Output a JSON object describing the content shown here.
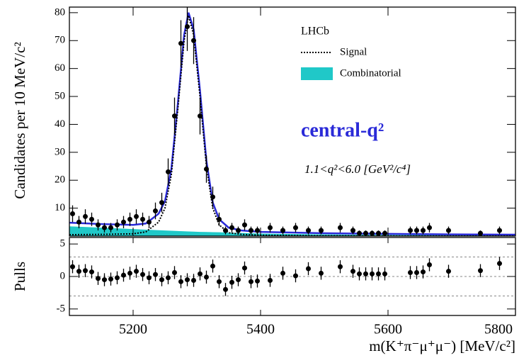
{
  "chart_data": [
    {
      "type": "scatter",
      "ylabel": "Candidates per 10 MeV/c²",
      "experiment": "LHCb",
      "annotations": [
        "central-q²",
        "1.1<q²<6.0 [GeV²/c⁴]"
      ],
      "xlim": [
        5100,
        5800
      ],
      "xticks": [
        5200,
        5400,
        5600,
        5800
      ],
      "ylim": [
        0,
        82
      ],
      "yticks": [
        10,
        20,
        30,
        40,
        50,
        60,
        70,
        80
      ],
      "color": "#000000",
      "x": [
        5105,
        5115,
        5125,
        5135,
        5145,
        5155,
        5165,
        5175,
        5185,
        5195,
        5205,
        5215,
        5225,
        5235,
        5245,
        5255,
        5265,
        5275,
        5285,
        5295,
        5305,
        5315,
        5325,
        5335,
        5345,
        5355,
        5365,
        5375,
        5385,
        5395,
        5415,
        5435,
        5455,
        5475,
        5495,
        5525,
        5545,
        5555,
        5565,
        5575,
        5585,
        5595,
        5635,
        5645,
        5655,
        5665,
        5695,
        5745,
        5775
      ],
      "values": [
        8,
        5,
        7,
        6,
        4,
        3,
        3,
        4,
        5,
        6,
        7,
        6,
        5,
        9,
        12,
        23,
        43,
        69,
        75,
        70,
        43,
        24,
        14,
        6,
        2,
        3,
        2,
        4,
        2,
        2,
        3,
        2,
        3,
        2,
        2,
        3,
        2,
        1,
        1,
        1,
        1,
        1,
        2,
        2,
        2,
        3,
        2,
        1,
        2
      ],
      "errors": [
        3,
        2.2,
        2.6,
        2.4,
        2,
        1.7,
        1.7,
        2,
        2.2,
        2.4,
        2.6,
        2.4,
        2.2,
        3,
        3.5,
        4.8,
        6.6,
        8.3,
        8.7,
        8.4,
        6.6,
        4.9,
        3.7,
        2.4,
        1.4,
        1.7,
        1.4,
        2,
        1.4,
        1.4,
        1.7,
        1.4,
        1.7,
        1.4,
        1.4,
        1.7,
        1.4,
        1,
        1,
        1,
        1,
        1,
        1.4,
        1.4,
        1.4,
        1.7,
        1.4,
        1,
        1.4
      ],
      "curves": [
        {
          "name": "Combinatorial",
          "color": "#20c8c8",
          "style": "fill",
          "x": [
            5100,
            5150,
            5200,
            5220,
            5240,
            5250,
            5260,
            5270,
            5280,
            5287,
            5295,
            5305,
            5315,
            5325,
            5335,
            5350,
            5370,
            5400,
            5500,
            5600,
            5700,
            5800
          ],
          "values": [
            3.5,
            3.0,
            2.5,
            2.3,
            2.1,
            2.0,
            1.9,
            1.8,
            1.7,
            1.65,
            1.6,
            1.5,
            1.45,
            1.4,
            1.35,
            1.2,
            1.1,
            0.9,
            0.6,
            0.4,
            0.3,
            0.2
          ]
        },
        {
          "color": "#2a2ad8",
          "style": "solid",
          "x": [
            5100,
            5150,
            5200,
            5220,
            5240,
            5250,
            5260,
            5270,
            5280,
            5287,
            5295,
            5305,
            5315,
            5325,
            5335,
            5350,
            5370,
            5400,
            5500,
            5600,
            5700,
            5800
          ],
          "values": [
            4.8,
            4.3,
            4.0,
            4.5,
            8,
            12.5,
            24,
            47,
            72,
            80,
            74,
            52,
            27,
            12,
            6,
            3,
            2,
            1.5,
            1,
            0.8,
            0.6,
            0.5
          ]
        },
        {
          "name": "Signal",
          "color": "#000000",
          "style": "dotted",
          "x": [
            5100,
            5150,
            5200,
            5220,
            5240,
            5250,
            5260,
            5270,
            5280,
            5287,
            5295,
            5305,
            5315,
            5325,
            5335,
            5350,
            5370,
            5400,
            5500,
            5600,
            5700,
            5800
          ],
          "values": [
            0.5,
            0.6,
            0.8,
            1.5,
            5,
            10,
            22,
            45,
            70,
            79,
            72,
            50,
            25,
            10,
            4,
            1.2,
            0.6,
            0.3,
            0.1,
            0.05,
            0.03,
            0.02
          ]
        }
      ]
    },
    {
      "type": "scatter",
      "ylabel": "Pulls",
      "xlabel": "m(K⁺π⁻μ⁺μ⁻) [MeV/c²]",
      "xlim": [
        5100,
        5800
      ],
      "xticks": [
        5200,
        5400,
        5600,
        5800
      ],
      "ylim": [
        -6,
        6
      ],
      "yticks": [
        -5,
        0,
        5
      ],
      "reference_lines": [
        -3,
        0,
        3
      ],
      "color": "#000000",
      "x": [
        5105,
        5115,
        5125,
        5135,
        5145,
        5155,
        5165,
        5175,
        5185,
        5195,
        5205,
        5215,
        5225,
        5235,
        5245,
        5255,
        5265,
        5275,
        5285,
        5295,
        5305,
        5315,
        5325,
        5335,
        5345,
        5355,
        5365,
        5375,
        5385,
        5395,
        5415,
        5435,
        5455,
        5475,
        5495,
        5525,
        5545,
        5555,
        5565,
        5575,
        5585,
        5595,
        5635,
        5645,
        5655,
        5665,
        5695,
        5745,
        5775
      ],
      "values": [
        1.5,
        0.8,
        0.9,
        0.7,
        -0.3,
        -0.5,
        -0.4,
        -0.2,
        0.2,
        0.5,
        0.8,
        0.3,
        -0.2,
        0.3,
        -0.5,
        -0.2,
        0.6,
        -0.8,
        -0.5,
        -0.6,
        0.4,
        -0.1,
        1.6,
        -0.8,
        -2.0,
        -0.9,
        -0.5,
        1.3,
        -0.8,
        -0.7,
        -0.6,
        0.5,
        0.1,
        1.2,
        0.5,
        1.5,
        0.8,
        0.4,
        0.4,
        0.4,
        0.4,
        0.4,
        0.6,
        0.6,
        0.7,
        1.8,
        0.8,
        0.9,
        2.0
      ],
      "errors": [
        1,
        1,
        1,
        1,
        1,
        1,
        1,
        1,
        1,
        1,
        1,
        1,
        1,
        1,
        1,
        1,
        1,
        1,
        1,
        1,
        1,
        1,
        1,
        1,
        1,
        1,
        1,
        1,
        1,
        1,
        1,
        1,
        1,
        1,
        1,
        1,
        1,
        1,
        1,
        1,
        1,
        1,
        1,
        1,
        1,
        1,
        1,
        1,
        1
      ]
    }
  ]
}
